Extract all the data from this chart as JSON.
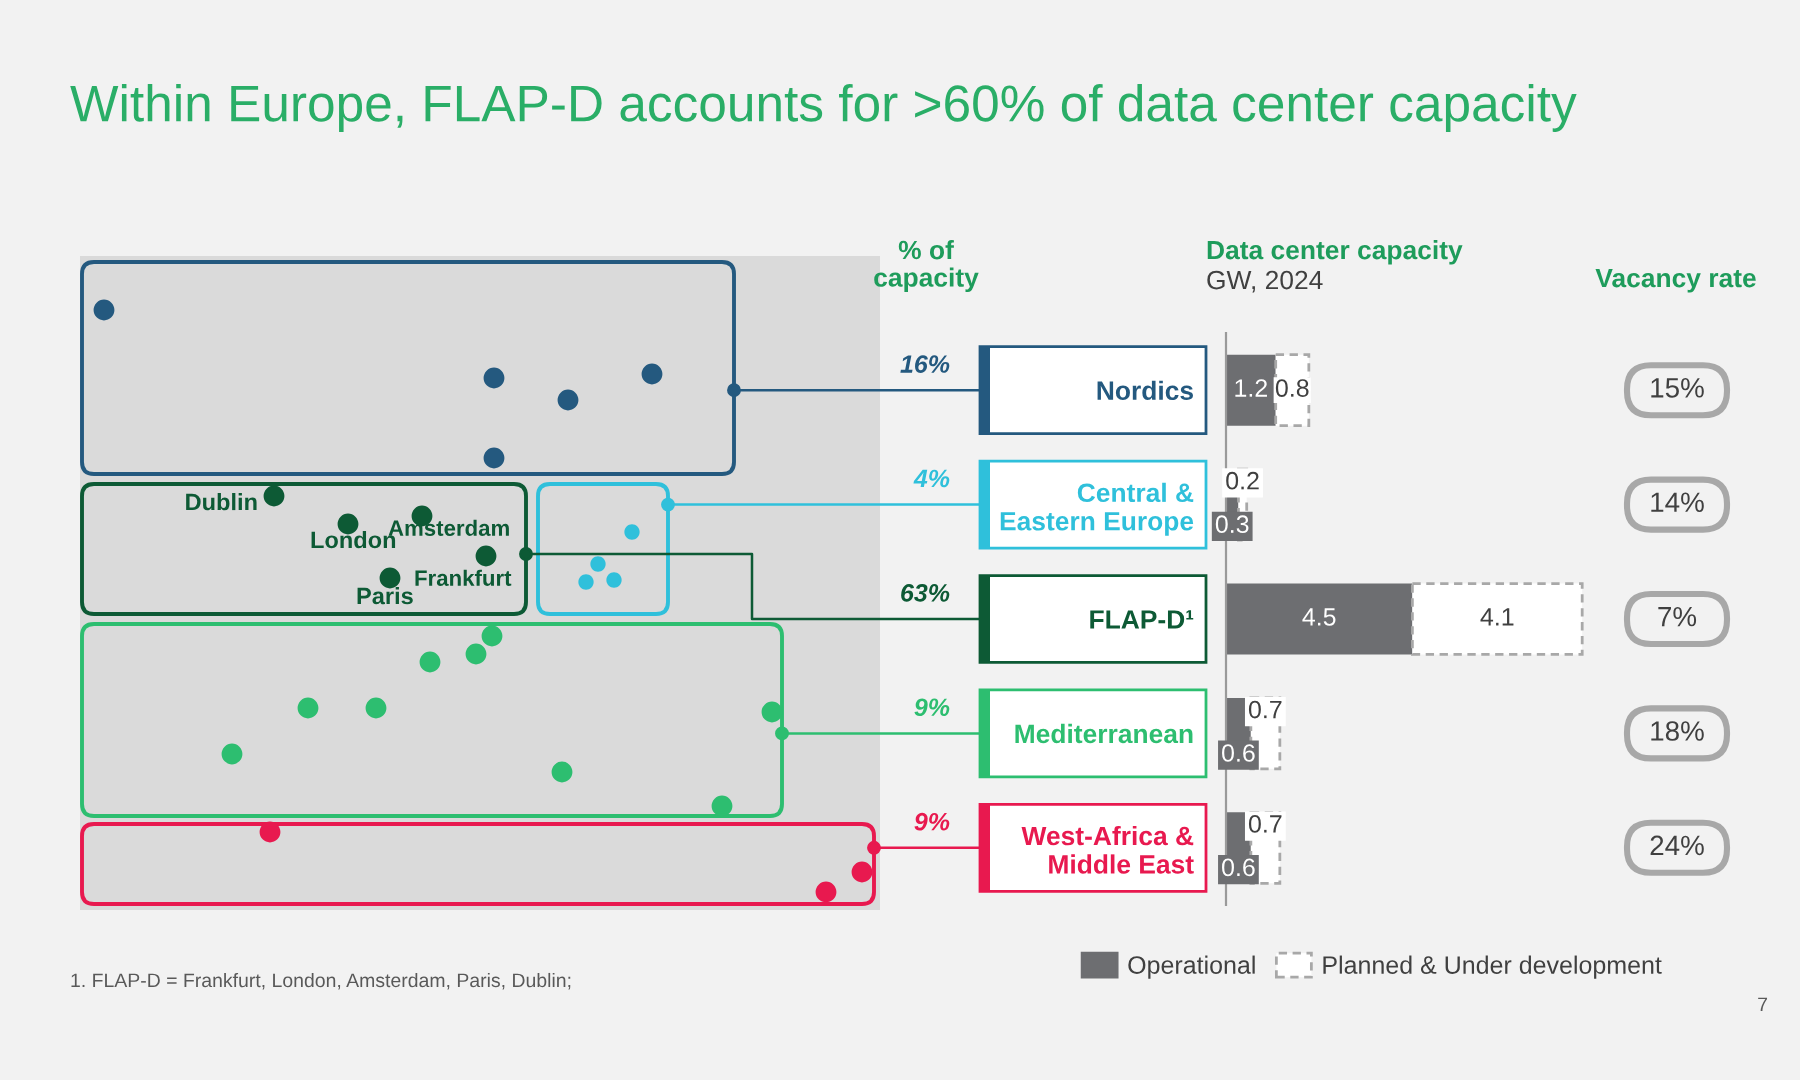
{
  "chart_data": [
    {
      "type": "other",
      "title": "Within Europe, FLAP-D accounts for >60% of data center capacity",
      "annotations": [
        "Dublin",
        "London",
        "Amsterdam",
        "Paris",
        "Frankfurt",
        "1. FLAP-D = Frankfurt, London, Amsterdam, Paris, Dublin;",
        "7"
      ]
    },
    {
      "type": "other",
      "title": "% of\ncapacity",
      "annotations": [
        "16%",
        "4%",
        "63%",
        "9%",
        "9%"
      ],
      "colors": [
        "#24597f",
        "#2fc0db",
        "#0d5a35",
        "#2dbe70",
        "#e8194f"
      ]
    },
    {
      "type": "bar",
      "title": "Data center capacity",
      "subtitle": "GW, 2024",
      "categories": [
        "Nordics",
        "Central &\nEastern Europe",
        "FLAP-D¹",
        "Mediterranean",
        "West-Africa &\nMiddle East"
      ],
      "orientation": "horizontal",
      "stacked": true,
      "data_labels": true,
      "legend": "bottom",
      "tick_labels": "y",
      "series": [
        {
          "name": "Operational",
          "color": "#6d6e71",
          "values": [
            1.2,
            0.3,
            4.5,
            0.6,
            0.6
          ]
        },
        {
          "name": "Planned & Under development",
          "color": "#ffffff",
          "line_style": "dashed",
          "values": [
            0.8,
            0.2,
            4.1,
            0.7,
            0.7
          ]
        }
      ]
    },
    {
      "type": "other",
      "title": "Vacancy rate",
      "annotations": [
        "15%",
        "14%",
        "7%",
        "18%",
        "24%"
      ]
    }
  ]
}
